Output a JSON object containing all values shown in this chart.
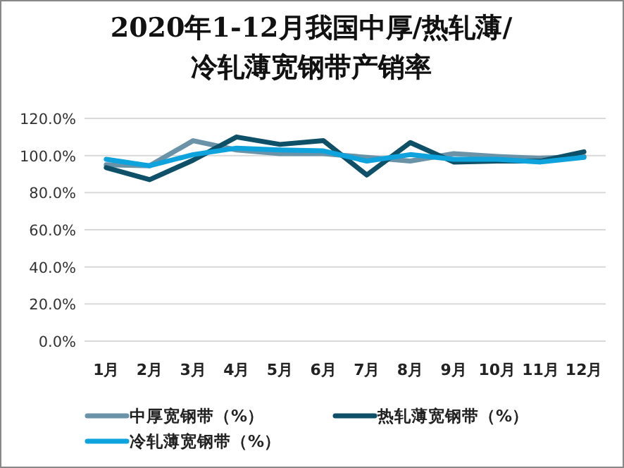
{
  "chart_data": {
    "type": "line",
    "title": "2020年1-12月我国中厚/热轧薄/冷轧薄宽钢带产销率",
    "categories": [
      "1月",
      "2月",
      "3月",
      "4月",
      "5月",
      "6月",
      "7月",
      "8月",
      "9月",
      "10月",
      "11月",
      "12月"
    ],
    "series": [
      {
        "name": "中厚宽钢带（%）",
        "color": "#6a93a8",
        "values": [
          95,
          94.5,
          108,
          103,
          101,
          101,
          99,
          97,
          101,
          99.5,
          98.5,
          99.5
        ]
      },
      {
        "name": "热轧薄宽钢带（%）",
        "color": "#0d5068",
        "values": [
          93.5,
          87,
          97.5,
          110,
          106,
          108,
          89.5,
          107,
          96.5,
          97,
          97,
          102
        ]
      },
      {
        "name": "冷轧薄宽钢带（%）",
        "color": "#0ea3dc",
        "values": [
          98,
          94.5,
          100.5,
          104,
          103,
          102.5,
          97,
          100.5,
          98,
          98,
          96.5,
          99
        ]
      }
    ],
    "ylim": [
      0,
      120
    ],
    "yticks": [
      {
        "value": 0,
        "label": "0.0%"
      },
      {
        "value": 20,
        "label": "20.0%"
      },
      {
        "value": 40,
        "label": "40.0%"
      },
      {
        "value": 60,
        "label": "60.0%"
      },
      {
        "value": 80,
        "label": "80.0%"
      },
      {
        "value": 100,
        "label": "100.0%"
      },
      {
        "value": 120,
        "label": "120.0%"
      }
    ],
    "grid": "y",
    "legend": "bottom",
    "marker": "none",
    "line_style": "solid"
  }
}
